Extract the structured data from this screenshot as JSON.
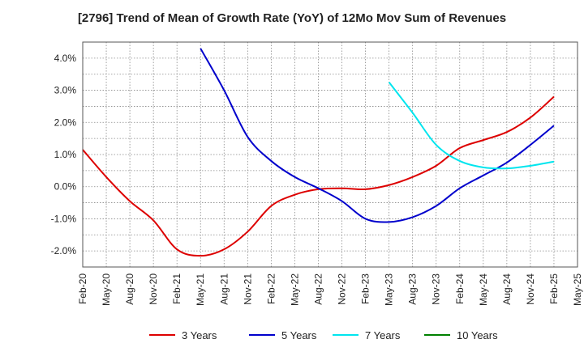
{
  "chart_data": {
    "type": "line",
    "title": "[2796]  Trend of Mean of Growth Rate (YoY) of 12Mo Mov Sum of Revenues",
    "xlabel": "",
    "ylabel": "",
    "ylim": [
      -2.5,
      4.5
    ],
    "yticks": [
      4.0,
      3.0,
      2.0,
      1.0,
      0.0,
      -1.0,
      -2.0
    ],
    "ytick_labels": [
      "4.0%",
      "3.0%",
      "2.0%",
      "1.0%",
      "0.0%",
      "-1.0%",
      "-2.0%"
    ],
    "x_ticks": [
      "Feb-20",
      "May-20",
      "Aug-20",
      "Nov-20",
      "Feb-21",
      "May-21",
      "Aug-21",
      "Nov-21",
      "Feb-22",
      "May-22",
      "Aug-22",
      "Nov-22",
      "Feb-23",
      "May-23",
      "Aug-23",
      "Nov-23",
      "Feb-24",
      "May-24",
      "Aug-24",
      "Nov-24",
      "Feb-25",
      "May-25"
    ],
    "grid": true,
    "legend_position": "bottom",
    "series": [
      {
        "name": "3 Years",
        "color": "#dd0000",
        "x_index": [
          0,
          1,
          2,
          3,
          4,
          5,
          6,
          7,
          8,
          9,
          10,
          11,
          12,
          13,
          14,
          15,
          16,
          17,
          18,
          19,
          20
        ],
        "values": [
          1.15,
          0.3,
          -0.45,
          -1.05,
          -1.95,
          -2.15,
          -1.95,
          -1.4,
          -0.6,
          -0.25,
          -0.08,
          -0.05,
          -0.08,
          0.05,
          0.3,
          0.65,
          1.2,
          1.45,
          1.7,
          2.15,
          2.8
        ]
      },
      {
        "name": "5 Years",
        "color": "#0000cc",
        "x_index": [
          5,
          6,
          7,
          8,
          9,
          10,
          11,
          12,
          13,
          14,
          15,
          16,
          17,
          18,
          19,
          20
        ],
        "values": [
          4.3,
          3.0,
          1.55,
          0.8,
          0.3,
          -0.05,
          -0.45,
          -1.0,
          -1.1,
          -0.95,
          -0.6,
          -0.05,
          0.35,
          0.75,
          1.3,
          1.9
        ]
      },
      {
        "name": "7 Years",
        "color": "#00e5ee",
        "x_index": [
          13,
          14,
          15,
          16,
          17,
          18,
          19,
          20
        ],
        "values": [
          3.25,
          2.3,
          1.3,
          0.8,
          0.6,
          0.57,
          0.65,
          0.78
        ]
      },
      {
        "name": "10 Years",
        "color": "#008000",
        "x_index": [],
        "values": []
      }
    ]
  }
}
